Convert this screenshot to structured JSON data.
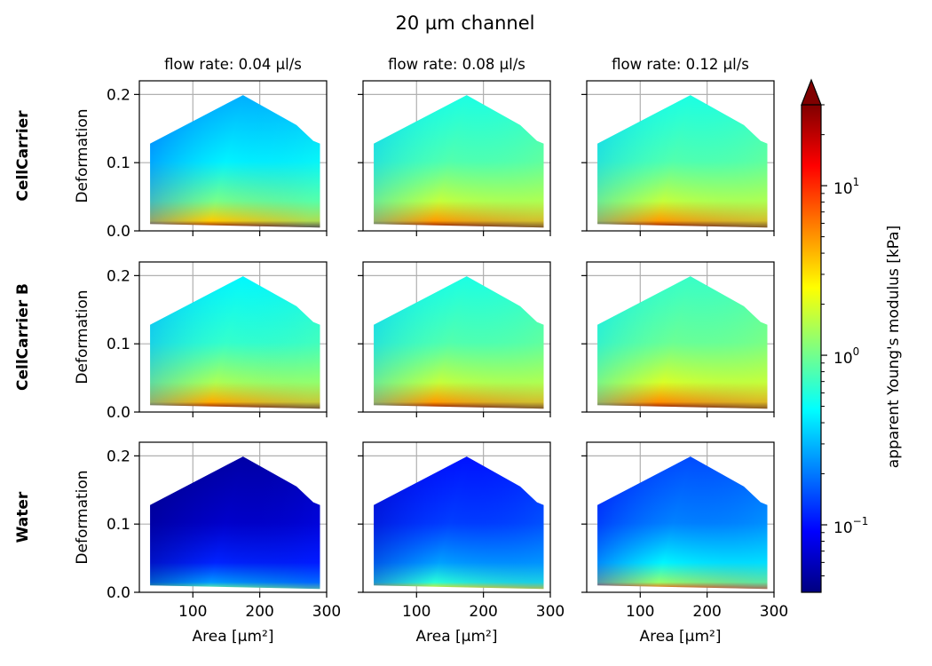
{
  "figure": {
    "title": "20 µm channel"
  },
  "chart_data": {
    "type": "heatmap",
    "title": "20 µm channel",
    "rows": [
      "CellCarrier",
      "CellCarrier B",
      "Water"
    ],
    "columns": [
      "flow rate: 0.04 µl/s",
      "flow rate: 0.08 µl/s",
      "flow rate: 0.12 µl/s"
    ],
    "xlabel": "Area [µm²]",
    "ylabel": "Deformation",
    "xlim": [
      20,
      300
    ],
    "ylim": [
      0,
      0.22
    ],
    "xticks": [
      "100",
      "200",
      "300"
    ],
    "yticks": [
      "0.0",
      "0.1",
      "0.2"
    ],
    "grid": true,
    "region_outline": {
      "area": [
        36,
        36,
        175,
        255,
        280,
        290,
        290,
        36
      ],
      "deformation": [
        0.01,
        0.128,
        0.199,
        0.155,
        0.132,
        0.128,
        0.005,
        0.01
      ]
    },
    "colorbar": {
      "label": "apparent Young's modulus [kPa]",
      "scale": "log",
      "colormap": "jet",
      "range": [
        0.04,
        30
      ],
      "ticks": [
        {
          "base": "10",
          "exp": "−1",
          "value": 0.1
        },
        {
          "base": "10",
          "exp": "0",
          "value": 1
        },
        {
          "base": "10",
          "exp": "1",
          "value": 10
        }
      ],
      "extend": "max"
    },
    "panels": [
      {
        "row": 0,
        "col": 0,
        "emin_kpa": 0.25,
        "emax_kpa": 30
      },
      {
        "row": 0,
        "col": 1,
        "emin_kpa": 0.5,
        "emax_kpa": 30
      },
      {
        "row": 0,
        "col": 2,
        "emin_kpa": 0.5,
        "emax_kpa": 30
      },
      {
        "row": 1,
        "col": 0,
        "emin_kpa": 0.4,
        "emax_kpa": 30
      },
      {
        "row": 1,
        "col": 1,
        "emin_kpa": 0.5,
        "emax_kpa": 30
      },
      {
        "row": 1,
        "col": 2,
        "emin_kpa": 0.6,
        "emax_kpa": 30
      },
      {
        "row": 2,
        "col": 0,
        "emin_kpa": 0.045,
        "emax_kpa": 1.0
      },
      {
        "row": 2,
        "col": 1,
        "emin_kpa": 0.09,
        "emax_kpa": 3.0
      },
      {
        "row": 2,
        "col": 2,
        "emin_kpa": 0.13,
        "emax_kpa": 8.0
      }
    ]
  }
}
